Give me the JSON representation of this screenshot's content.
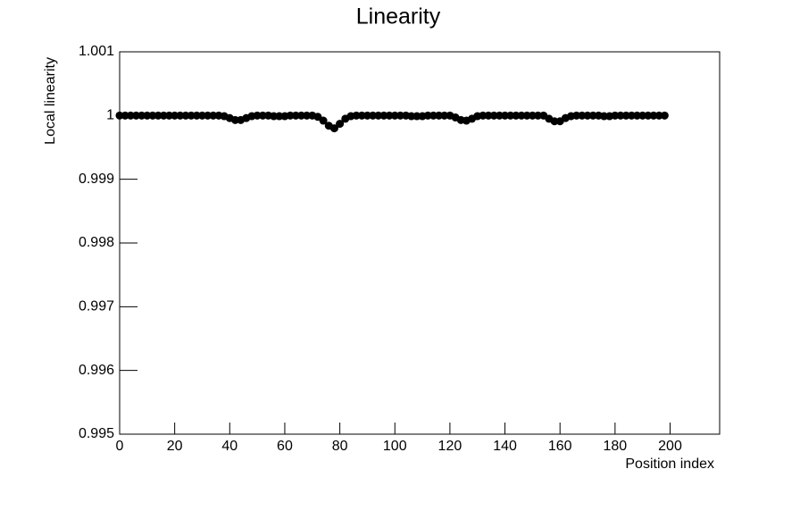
{
  "chart_data": {
    "type": "scatter",
    "title": "Linearity",
    "x_label": "Position index",
    "y_label": "Local linearity",
    "color": "#000000",
    "x": [
      0,
      2,
      4,
      6,
      8,
      10,
      12,
      14,
      16,
      18,
      20,
      22,
      24,
      26,
      28,
      30,
      32,
      34,
      36,
      38,
      40,
      42,
      44,
      46,
      48,
      50,
      52,
      54,
      56,
      58,
      60,
      62,
      64,
      66,
      68,
      70,
      72,
      74,
      76,
      78,
      80,
      82,
      84,
      86,
      88,
      90,
      92,
      94,
      96,
      98,
      100,
      102,
      104,
      106,
      108,
      110,
      112,
      114,
      116,
      118,
      120,
      122,
      124,
      126,
      128,
      130,
      132,
      134,
      136,
      138,
      140,
      142,
      144,
      146,
      148,
      150,
      152,
      154,
      156,
      158,
      160,
      162,
      164,
      166,
      168,
      170,
      172,
      174,
      176,
      178,
      180,
      182,
      184,
      186,
      188,
      190,
      192,
      194,
      196,
      198
    ],
    "values": [
      1,
      1,
      1,
      1,
      1,
      1,
      1,
      1,
      1,
      1,
      1,
      1,
      1,
      1,
      1,
      1,
      1,
      1,
      1,
      0.99999,
      0.99996,
      0.99993,
      0.99993,
      0.99996,
      0.99999,
      1,
      1,
      1,
      0.99999,
      0.99999,
      0.99999,
      1,
      1,
      1,
      1,
      1,
      0.99998,
      0.99992,
      0.99984,
      0.9998,
      0.99987,
      0.99995,
      0.99999,
      1,
      1,
      1,
      1,
      1,
      1,
      1,
      1,
      1,
      1,
      0.99999,
      0.99999,
      0.99999,
      1,
      1,
      1,
      1,
      1,
      0.99997,
      0.99993,
      0.99992,
      0.99995,
      0.99999,
      1,
      1,
      1,
      1,
      1,
      1,
      1,
      1,
      1,
      1,
      1,
      1,
      0.99995,
      0.99991,
      0.99991,
      0.99996,
      0.99999,
      1,
      1,
      1,
      1,
      1,
      0.99999,
      0.99999,
      1,
      1,
      1,
      1,
      1,
      1,
      1,
      1,
      1,
      1
    ],
    "xlim": [
      0,
      218
    ],
    "ylim": [
      0.995,
      1.001
    ],
    "xticks": [
      0,
      20,
      40,
      60,
      80,
      100,
      120,
      140,
      160,
      180,
      200
    ],
    "yticks": [
      0.995,
      0.996,
      0.997,
      0.998,
      0.999,
      1,
      1.001
    ]
  }
}
